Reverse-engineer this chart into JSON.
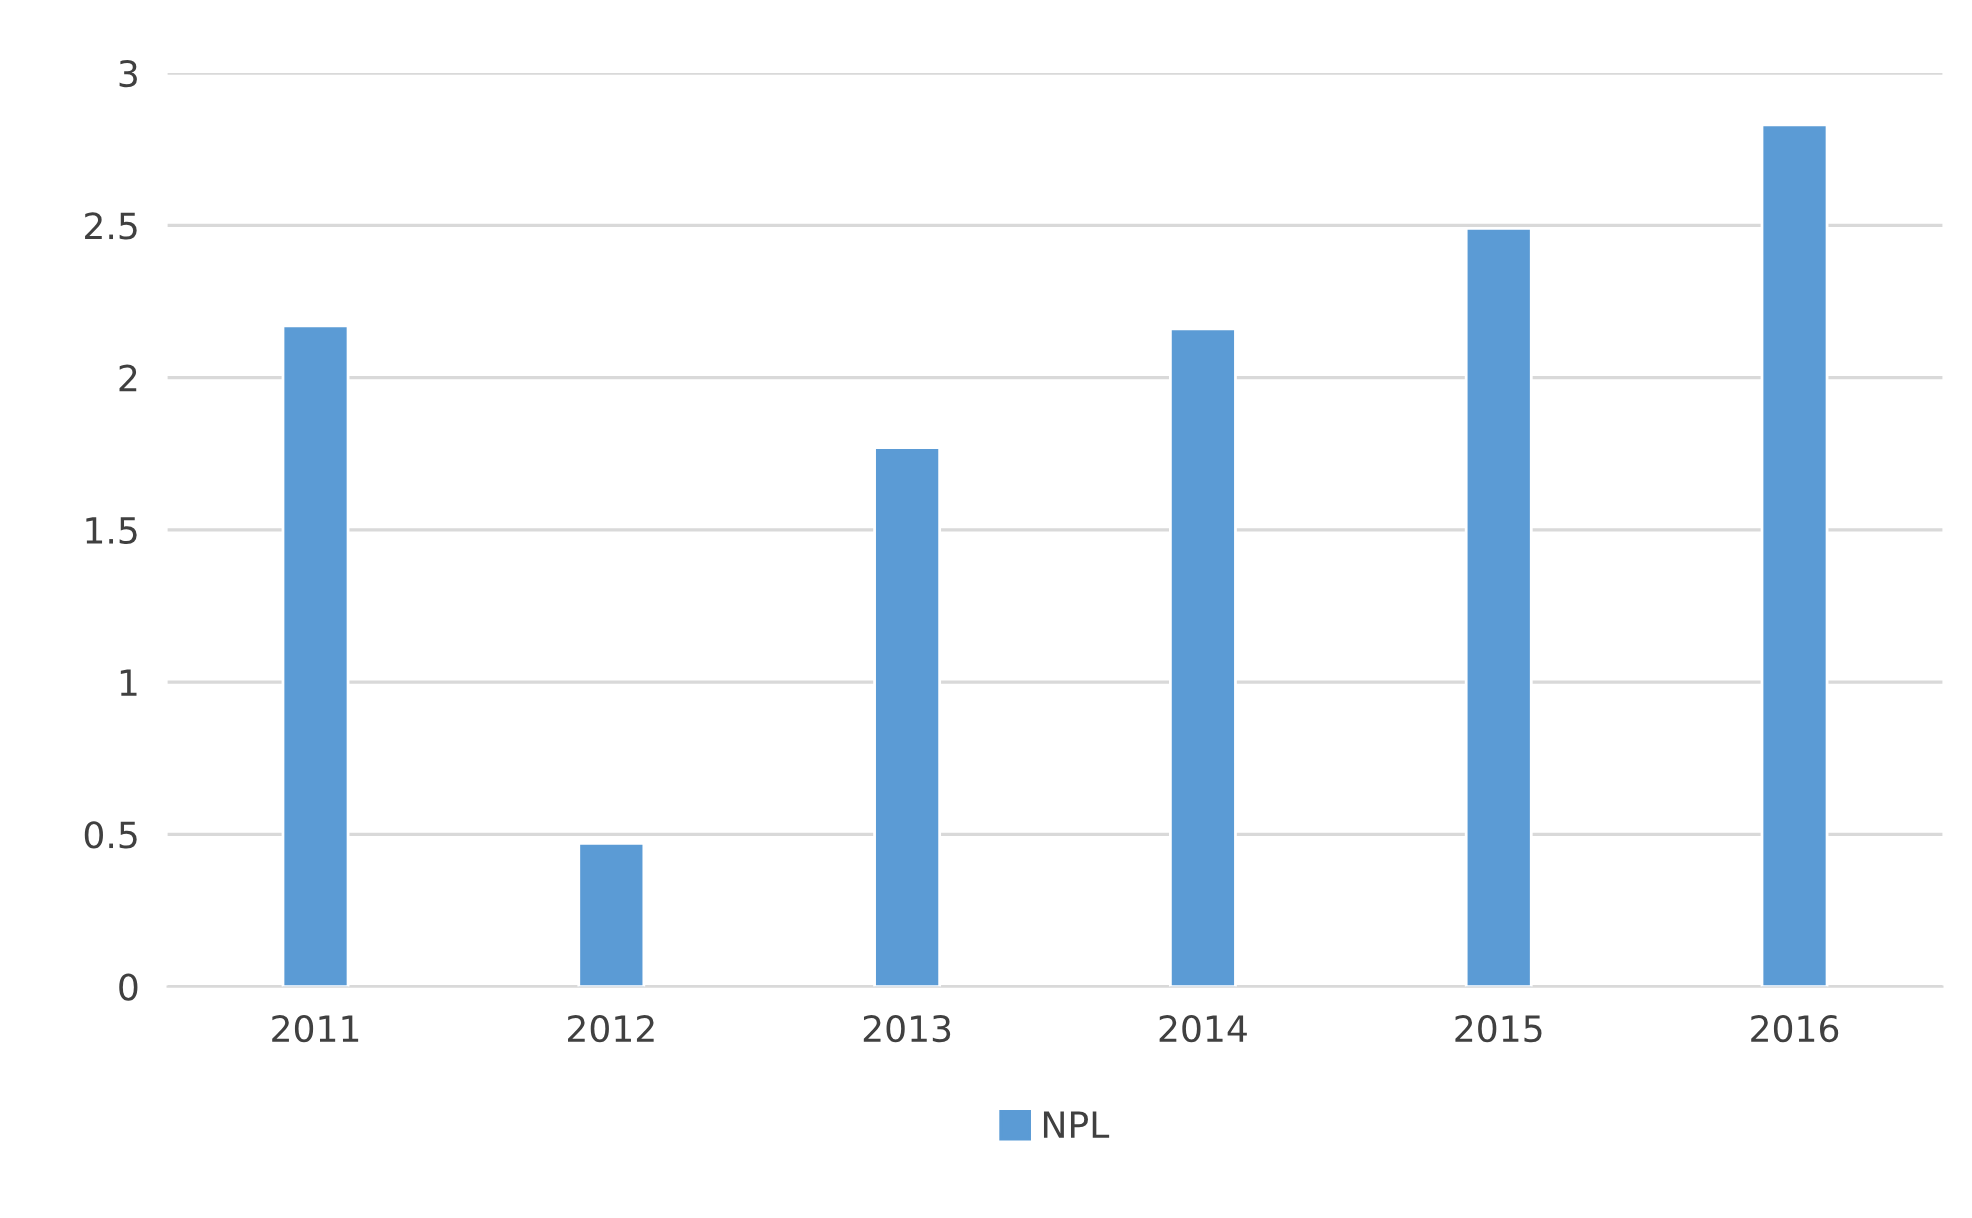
{
  "chart_data": {
    "type": "bar",
    "categories": [
      "2011",
      "2012",
      "2013",
      "2014",
      "2015",
      "2016"
    ],
    "series": [
      {
        "name": "NPL",
        "color": "#5b9bd5",
        "values": [
          2.17,
          0.47,
          1.77,
          2.16,
          2.49,
          2.83
        ]
      }
    ],
    "ylim": [
      0,
      3
    ],
    "yticks": [
      0,
      0.5,
      1,
      1.5,
      2,
      2.5,
      3
    ],
    "grid": "y",
    "legend": "bottom"
  }
}
